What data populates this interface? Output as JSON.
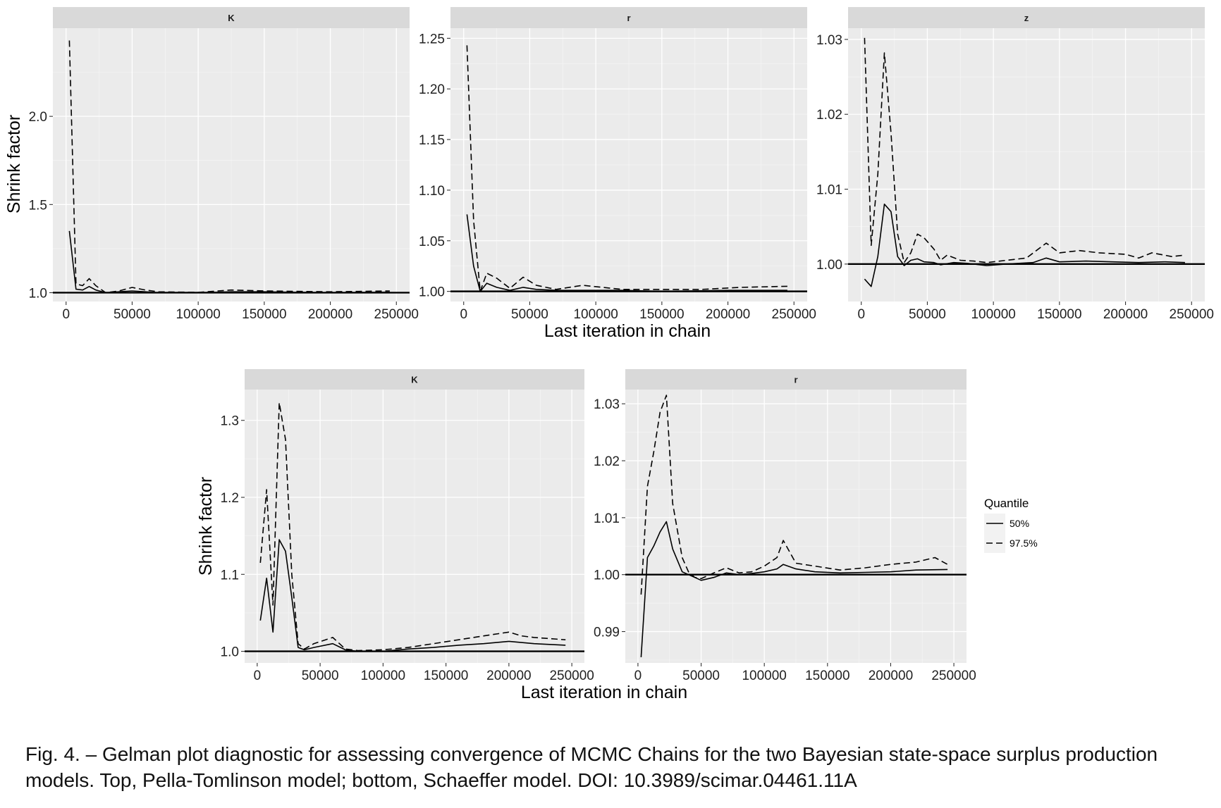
{
  "caption": "Fig. 4. – Gelman plot diagnostic for assessing convergence of MCMC Chains for the two Bayesian state-space surplus production models. Top, Pella-Tomlinson model; bottom, Schaeffer model. DOI: 10.3989/scimar.04461.11A",
  "legend": {
    "title": "Quantile",
    "items": [
      {
        "label": "50%",
        "style": "solid"
      },
      {
        "label": "97.5%",
        "style": "dashed"
      }
    ]
  },
  "axes": {
    "xlabel": "Last iteration in chain",
    "ylabel": "Shrink factor"
  },
  "chart_data": [
    {
      "type": "line",
      "group": "top",
      "facet": "K",
      "xlim": [
        -10000,
        260000
      ],
      "ylim": [
        0.95,
        2.5
      ],
      "x_ticks": [
        0,
        50000,
        100000,
        150000,
        200000,
        250000
      ],
      "y_ticks": [
        1.0,
        1.5,
        2.0
      ],
      "y_tick_labels": [
        "1.0",
        "1.5",
        "2.0"
      ],
      "reference_line": 1.0,
      "series": [
        {
          "name": "50%",
          "x": [
            2500,
            7500,
            12500,
            17500,
            22500,
            30000,
            40000,
            50000,
            60000,
            70000,
            100000,
            125000,
            150000,
            200000,
            245000
          ],
          "y": [
            1.35,
            1.02,
            1.015,
            1.035,
            1.015,
            1.0,
            1.005,
            1.01,
            1.005,
            1.0,
            1.0,
            1.005,
            1.005,
            1.0,
            1.003
          ]
        },
        {
          "name": "97.5%",
          "x": [
            2500,
            7500,
            12500,
            17500,
            22500,
            30000,
            40000,
            50000,
            60000,
            70000,
            100000,
            125000,
            150000,
            200000,
            245000
          ],
          "y": [
            2.43,
            1.05,
            1.04,
            1.08,
            1.04,
            1.0,
            1.01,
            1.03,
            1.015,
            1.005,
            1.002,
            1.015,
            1.01,
            1.005,
            1.01
          ]
        }
      ]
    },
    {
      "type": "line",
      "group": "top",
      "facet": "r",
      "xlim": [
        -10000,
        260000
      ],
      "ylim": [
        0.99,
        1.26
      ],
      "x_ticks": [
        0,
        50000,
        100000,
        150000,
        200000,
        250000
      ],
      "y_ticks": [
        1.0,
        1.05,
        1.1,
        1.15,
        1.2,
        1.25
      ],
      "y_tick_labels": [
        "1.00",
        "1.05",
        "1.10",
        "1.15",
        "1.20",
        "1.25"
      ],
      "reference_line": 1.0,
      "series": [
        {
          "name": "50%",
          "x": [
            2500,
            7500,
            12500,
            17500,
            25000,
            35000,
            45000,
            55000,
            70000,
            90000,
            120000,
            150000,
            200000,
            245000
          ],
          "y": [
            1.076,
            1.025,
            1.0,
            1.008,
            1.004,
            1.001,
            1.004,
            1.002,
            1.001,
            1.001,
            1.001,
            1.0,
            1.001,
            1.001
          ]
        },
        {
          "name": "97.5%",
          "x": [
            2500,
            7500,
            12500,
            17500,
            25000,
            35000,
            45000,
            55000,
            70000,
            90000,
            120000,
            150000,
            180000,
            210000,
            245000
          ],
          "y": [
            1.243,
            1.07,
            1.0,
            1.018,
            1.013,
            1.003,
            1.014,
            1.006,
            1.002,
            1.006,
            1.002,
            1.002,
            1.002,
            1.004,
            1.005
          ]
        }
      ]
    },
    {
      "type": "line",
      "group": "top",
      "facet": "z",
      "xlim": [
        -10000,
        260000
      ],
      "ylim": [
        0.995,
        1.0315
      ],
      "x_ticks": [
        0,
        50000,
        100000,
        150000,
        200000,
        250000
      ],
      "y_ticks": [
        1.0,
        1.01,
        1.02,
        1.03
      ],
      "y_tick_labels": [
        "1.00",
        "1.01",
        "1.02",
        "1.03"
      ],
      "reference_line": 1.0,
      "series": [
        {
          "name": "50%",
          "x": [
            2500,
            7500,
            12500,
            17500,
            22500,
            27500,
            32500,
            37500,
            42500,
            47500,
            55000,
            60000,
            70000,
            80000,
            95000,
            110000,
            130000,
            140000,
            150000,
            170000,
            190000,
            210000,
            230000,
            245000
          ],
          "y": [
            0.998,
            0.997,
            1.001,
            1.008,
            1.007,
            1.001,
            0.9998,
            1.0005,
            1.0007,
            1.0003,
            1.0002,
            0.9999,
            1.0002,
            1.0001,
            0.9998,
            1.0,
            1.0002,
            1.0008,
            1.0003,
            1.0004,
            1.0003,
            1.0002,
            1.0003,
            1.0002
          ]
        },
        {
          "name": "97.5%",
          "x": [
            2500,
            7500,
            12500,
            17500,
            22500,
            27500,
            32500,
            37500,
            42500,
            47500,
            55000,
            60000,
            65000,
            75000,
            85000,
            95000,
            110000,
            125000,
            140000,
            150000,
            165000,
            180000,
            200000,
            210000,
            220000,
            235000,
            245000
          ],
          "y": [
            1.0302,
            1.0025,
            1.012,
            1.0282,
            1.0175,
            1.004,
            1.0002,
            1.0015,
            1.004,
            1.0035,
            1.002,
            1.0005,
            1.0012,
            1.0005,
            1.0004,
            1.0002,
            1.0005,
            1.0008,
            1.0028,
            1.0015,
            1.0018,
            1.0015,
            1.0013,
            1.0008,
            1.0015,
            1.001,
            1.0012
          ]
        }
      ]
    },
    {
      "type": "line",
      "group": "bottom",
      "facet": "K",
      "xlim": [
        -10000,
        260000
      ],
      "ylim": [
        0.985,
        1.34
      ],
      "x_ticks": [
        0,
        50000,
        100000,
        150000,
        200000,
        250000
      ],
      "y_ticks": [
        1.0,
        1.1,
        1.2,
        1.3
      ],
      "y_tick_labels": [
        "1.0",
        "1.1",
        "1.2",
        "1.3"
      ],
      "reference_line": 1.0,
      "series": [
        {
          "name": "50%",
          "x": [
            2500,
            7500,
            12500,
            17500,
            22500,
            27500,
            32500,
            37500,
            45000,
            60000,
            70000,
            80000,
            100000,
            120000,
            140000,
            160000,
            180000,
            200000,
            220000,
            245000
          ],
          "y": [
            1.04,
            1.095,
            1.025,
            1.145,
            1.13,
            1.07,
            1.005,
            1.002,
            1.005,
            1.01,
            1.002,
            1.0,
            1.0,
            1.003,
            1.005,
            1.008,
            1.01,
            1.013,
            1.01,
            1.008
          ]
        },
        {
          "name": "97.5%",
          "x": [
            2500,
            7500,
            12500,
            17500,
            22500,
            27500,
            32500,
            37500,
            45000,
            60000,
            70000,
            80000,
            100000,
            120000,
            140000,
            160000,
            180000,
            200000,
            210000,
            220000,
            245000
          ],
          "y": [
            1.115,
            1.21,
            1.06,
            1.323,
            1.275,
            1.1,
            1.01,
            1.003,
            1.01,
            1.018,
            1.003,
            1.001,
            1.002,
            1.005,
            1.01,
            1.015,
            1.02,
            1.025,
            1.02,
            1.018,
            1.015
          ]
        }
      ]
    },
    {
      "type": "line",
      "group": "bottom",
      "facet": "r",
      "xlim": [
        -10000,
        260000
      ],
      "ylim": [
        0.9845,
        1.0325
      ],
      "x_ticks": [
        0,
        50000,
        100000,
        150000,
        200000,
        250000
      ],
      "y_ticks": [
        0.99,
        1.0,
        1.01,
        1.02,
        1.03
      ],
      "y_tick_labels": [
        "0.99",
        "1.00",
        "1.01",
        "1.02",
        "1.03"
      ],
      "reference_line": 1.0,
      "series": [
        {
          "name": "50%",
          "x": [
            2500,
            7500,
            12500,
            17500,
            22500,
            27500,
            35000,
            40000,
            45000,
            50000,
            60000,
            70000,
            80000,
            90000,
            100000,
            110000,
            115000,
            125000,
            140000,
            160000,
            180000,
            200000,
            220000,
            245000
          ],
          "y": [
            0.9855,
            1.003,
            1.005,
            1.0075,
            1.0093,
            1.0045,
            1.0005,
            1.0,
            0.9995,
            0.999,
            0.9995,
            1.0003,
            1.0,
            1.0002,
            1.0005,
            1.001,
            1.0018,
            1.001,
            1.0005,
            1.0003,
            1.0004,
            1.0005,
            1.0008,
            1.0009
          ]
        },
        {
          "name": "97.5%",
          "x": [
            2500,
            7500,
            12500,
            17500,
            22500,
            27500,
            35000,
            40000,
            45000,
            50000,
            60000,
            70000,
            80000,
            90000,
            100000,
            110000,
            115000,
            125000,
            140000,
            160000,
            180000,
            200000,
            220000,
            235000,
            245000
          ],
          "y": [
            0.9965,
            1.0155,
            1.0215,
            1.0285,
            1.0315,
            1.0125,
            1.003,
            1.0005,
            0.9995,
            0.9993,
            1.0003,
            1.0012,
            1.0003,
            1.0005,
            1.0015,
            1.003,
            1.006,
            1.002,
            1.0015,
            1.0008,
            1.0012,
            1.0018,
            1.0022,
            1.003,
            1.0018
          ]
        }
      ]
    }
  ]
}
